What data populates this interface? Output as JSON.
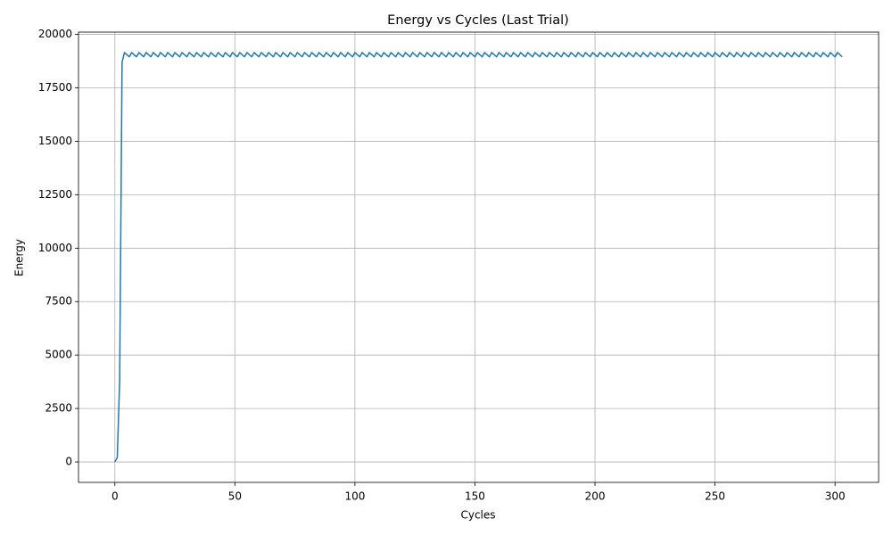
{
  "chart_data": {
    "type": "line",
    "title": "Energy vs Cycles (Last Trial)",
    "x_label": "Cycles",
    "y_label": "Energy",
    "x": [
      0,
      1,
      2,
      3,
      4,
      5,
      6,
      7,
      8,
      9,
      10,
      11,
      12,
      13,
      14,
      15,
      16,
      17,
      18,
      19,
      20,
      21,
      22,
      23,
      24,
      25,
      26,
      27,
      28,
      29,
      30,
      31,
      32,
      33,
      34,
      35,
      36,
      37,
      38,
      39,
      40,
      41,
      42,
      43,
      44,
      45,
      46,
      47,
      48,
      49,
      50,
      51,
      52,
      53,
      54,
      55,
      56,
      57,
      58,
      59,
      60,
      61,
      62,
      63,
      64,
      65,
      66,
      67,
      68,
      69,
      70,
      71,
      72,
      73,
      74,
      75,
      76,
      77,
      78,
      79,
      80,
      81,
      82,
      83,
      84,
      85,
      86,
      87,
      88,
      89,
      90,
      91,
      92,
      93,
      94,
      95,
      96,
      97,
      98,
      99,
      100,
      101,
      102,
      103,
      104,
      105,
      106,
      107,
      108,
      109,
      110,
      111,
      112,
      113,
      114,
      115,
      116,
      117,
      118,
      119,
      120,
      121,
      122,
      123,
      124,
      125,
      126,
      127,
      128,
      129,
      130,
      131,
      132,
      133,
      134,
      135,
      136,
      137,
      138,
      139,
      140,
      141,
      142,
      143,
      144,
      145,
      146,
      147,
      148,
      149,
      150,
      151,
      152,
      153,
      154,
      155,
      156,
      157,
      158,
      159,
      160,
      161,
      162,
      163,
      164,
      165,
      166,
      167,
      168,
      169,
      170,
      171,
      172,
      173,
      174,
      175,
      176,
      177,
      178,
      179,
      180,
      181,
      182,
      183,
      184,
      185,
      186,
      187,
      188,
      189,
      190,
      191,
      192,
      193,
      194,
      195,
      196,
      197,
      198,
      199,
      200,
      201,
      202,
      203,
      204,
      205,
      206,
      207,
      208,
      209,
      210,
      211,
      212,
      213,
      214,
      215,
      216,
      217,
      218,
      219,
      220,
      221,
      222,
      223,
      224,
      225,
      226,
      227,
      228,
      229,
      230,
      231,
      232,
      233,
      234,
      235,
      236,
      237,
      238,
      239,
      240,
      241,
      242,
      243,
      244,
      245,
      246,
      247,
      248,
      249,
      250,
      251,
      252,
      253,
      254,
      255,
      256,
      257,
      258,
      259,
      260,
      261,
      262,
      263,
      264,
      265,
      266,
      267,
      268,
      269,
      270,
      271,
      272,
      273,
      274,
      275,
      276,
      277,
      278,
      279,
      280,
      281,
      282,
      283,
      284,
      285,
      286,
      287,
      288,
      289,
      290,
      291,
      292,
      293,
      294,
      295,
      296,
      297,
      298,
      299,
      300,
      301,
      302,
      303
    ],
    "values": [
      0,
      200,
      3800,
      18700,
      19150,
      19050,
      18950,
      19150,
      19050,
      18950,
      19150,
      19050,
      18950,
      19150,
      19050,
      18950,
      19150,
      19050,
      18950,
      19150,
      19050,
      18950,
      19150,
      19050,
      18950,
      19150,
      19050,
      18950,
      19150,
      19050,
      18950,
      19150,
      19050,
      18950,
      19150,
      19050,
      18950,
      19150,
      19050,
      18950,
      19150,
      19050,
      18950,
      19150,
      19050,
      18950,
      19150,
      19050,
      18950,
      19150,
      19050,
      18950,
      19150,
      19050,
      18950,
      19150,
      19050,
      18950,
      19150,
      19050,
      18950,
      19150,
      19050,
      18950,
      19150,
      19050,
      18950,
      19150,
      19050,
      18950,
      19150,
      19050,
      18950,
      19150,
      19050,
      18950,
      19150,
      19050,
      18950,
      19150,
      19050,
      18950,
      19150,
      19050,
      18950,
      19150,
      19050,
      18950,
      19150,
      19050,
      18950,
      19150,
      19050,
      18950,
      19150,
      19050,
      18950,
      19150,
      19050,
      18950,
      19150,
      19050,
      18950,
      19150,
      19050,
      18950,
      19150,
      19050,
      18950,
      19150,
      19050,
      18950,
      19150,
      19050,
      18950,
      19150,
      19050,
      18950,
      19150,
      19050,
      18950,
      19150,
      19050,
      18950,
      19150,
      19050,
      18950,
      19150,
      19050,
      18950,
      19150,
      19050,
      18950,
      19150,
      19050,
      18950,
      19150,
      19050,
      18950,
      19150,
      19050,
      18950,
      19150,
      19050,
      18950,
      19150,
      19050,
      18950,
      19150,
      19050,
      18950,
      19150,
      19050,
      18950,
      19150,
      19050,
      18950,
      19150,
      19050,
      18950,
      19150,
      19050,
      18950,
      19150,
      19050,
      18950,
      19150,
      19050,
      18950,
      19150,
      19050,
      18950,
      19150,
      19050,
      18950,
      19150,
      19050,
      18950,
      19150,
      19050,
      18950,
      19150,
      19050,
      18950,
      19150,
      19050,
      18950,
      19150,
      19050,
      18950,
      19150,
      19050,
      18950,
      19150,
      19050,
      18950,
      19150,
      19050,
      18950,
      19150,
      19050,
      18950,
      19150,
      19050,
      18950,
      19150,
      19050,
      18950,
      19150,
      19050,
      18950,
      19150,
      19050,
      18950,
      19150,
      19050,
      18950,
      19150,
      19050,
      18950,
      19150,
      19050,
      18950,
      19150,
      19050,
      18950,
      19150,
      19050,
      18950,
      19150,
      19050,
      18950,
      19150,
      19050,
      18950,
      19150,
      19050,
      18950,
      19150,
      19050,
      18950,
      19150,
      19050,
      18950,
      19150,
      19050,
      18950,
      19150,
      19050,
      18950,
      19150,
      19050,
      18950,
      19150,
      19050,
      18950,
      19150,
      19050,
      18950,
      19150,
      19050,
      18950,
      19150,
      19050,
      18950,
      19150,
      19050,
      18950,
      19150,
      19050,
      18950,
      19150,
      19050,
      18950,
      19150,
      19050,
      18950,
      19150,
      19050,
      18950,
      19150,
      19050,
      18950,
      19150,
      19050,
      18950,
      19150,
      19050,
      18950,
      19150,
      19050,
      18950,
      19150,
      19050,
      18950,
      19150,
      19050,
      18950,
      19150,
      19050,
      18950,
      19150,
      19050,
      18950
    ],
    "color": "#1f77b4",
    "xlim": [
      -15.15,
      318.15
    ],
    "xticks": [
      0,
      50,
      100,
      150,
      200,
      250,
      300
    ],
    "ylim": [
      -957.5,
      20107.5
    ],
    "yticks": [
      0,
      2500,
      5000,
      7500,
      10000,
      12500,
      15000,
      17500,
      20000
    ],
    "grid": true
  }
}
